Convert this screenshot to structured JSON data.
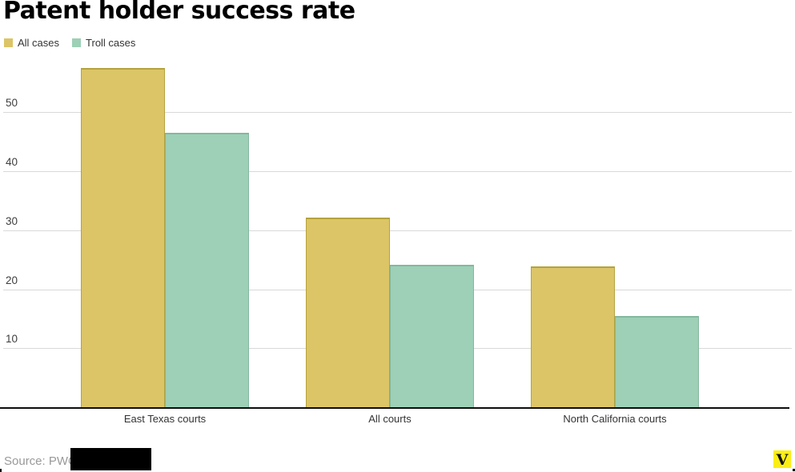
{
  "chart_data": {
    "type": "bar",
    "title": "Patent holder success rate",
    "categories": [
      "East Texas courts",
      "All courts",
      "North California courts"
    ],
    "series": [
      {
        "name": "All cases",
        "values": [
          57.5,
          32.1,
          23.8
        ],
        "color": "#dcc566",
        "border_color": "#b5a23e"
      },
      {
        "name": "Troll cases",
        "values": [
          46.5,
          24.1,
          15.4
        ],
        "color": "#9dd0b6",
        "border_color": "#83b89d"
      }
    ],
    "yticks": [
      10,
      20,
      30,
      40,
      50
    ],
    "ylim": [
      0,
      60
    ],
    "grid": true,
    "legend_position": "top-left",
    "xlabel": "",
    "ylabel": ""
  },
  "source": {
    "text": "Source: PWC",
    "redacted": true
  },
  "logo": {
    "letter": "V",
    "bg_color": "#fbee15"
  }
}
